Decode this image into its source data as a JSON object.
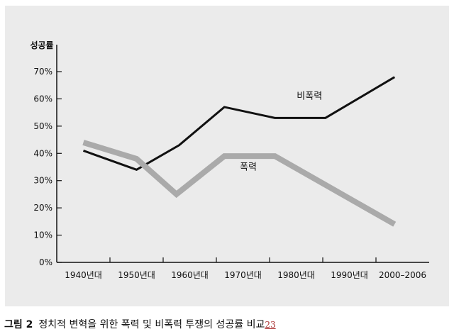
{
  "caption": {
    "number": "그림 2",
    "text": "정치적 변혁을 위한 폭력 및 비폭력 투쟁의 성공률 비교",
    "ref": "23"
  },
  "chart_data": {
    "type": "line",
    "ylabel": "성공률",
    "ylim": [
      0,
      70
    ],
    "y_ticks": [
      {
        "value": 0,
        "label": "0%"
      },
      {
        "value": 10,
        "label": "10%"
      },
      {
        "value": 20,
        "label": "20%"
      },
      {
        "value": 30,
        "label": "30%"
      },
      {
        "value": 40,
        "label": "40%"
      },
      {
        "value": 50,
        "label": "50%"
      },
      {
        "value": 60,
        "label": "60%"
      },
      {
        "value": 70,
        "label": "70%"
      }
    ],
    "categories": [
      "1940년대",
      "1950년대",
      "1960년대",
      "1970년대",
      "1980년대",
      "1990년대",
      "2000–2006"
    ],
    "series": [
      {
        "name": "비폭력",
        "color": "#111111",
        "points": [
          {
            "x": 0.5,
            "y": 41
          },
          {
            "x": 1.5,
            "y": 34
          },
          {
            "x": 2.3,
            "y": 43
          },
          {
            "x": 3.15,
            "y": 57
          },
          {
            "x": 4.1,
            "y": 53
          },
          {
            "x": 5.05,
            "y": 53
          },
          {
            "x": 6.35,
            "y": 68
          }
        ]
      },
      {
        "name": "폭력",
        "color": "#aaaaaa",
        "points": [
          {
            "x": 0.5,
            "y": 44
          },
          {
            "x": 1.5,
            "y": 38
          },
          {
            "x": 2.25,
            "y": 25
          },
          {
            "x": 3.15,
            "y": 39
          },
          {
            "x": 4.1,
            "y": 39
          },
          {
            "x": 6.35,
            "y": 14
          }
        ]
      }
    ]
  }
}
